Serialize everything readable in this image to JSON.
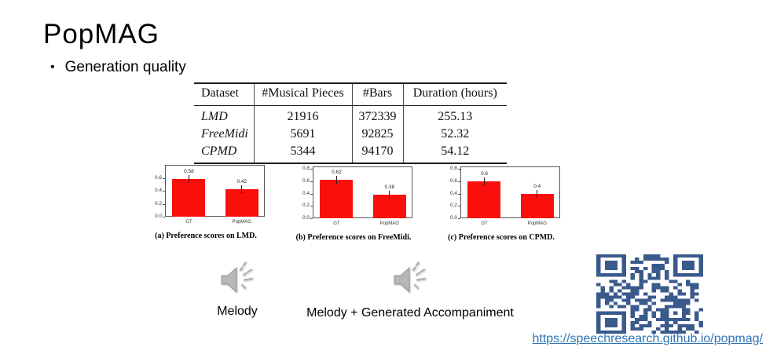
{
  "slide": {
    "title": "PopMAG",
    "bullet": "Generation quality"
  },
  "dataset_table": {
    "headers": [
      "Dataset",
      "#Musical Pieces",
      "#Bars",
      "Duration (hours)"
    ],
    "rows": [
      [
        "LMD",
        "21916",
        "372339",
        "255.13"
      ],
      [
        "FreeMidi",
        "5691",
        "92825",
        "52.32"
      ],
      [
        "CPMD",
        "5344",
        "94170",
        "54.12"
      ]
    ]
  },
  "chart_data": [
    {
      "type": "bar",
      "title": "(a) Preference scores on LMD.",
      "categories": [
        "GT",
        "PopMAG"
      ],
      "values": [
        0.58,
        0.42
      ],
      "value_labels": [
        "0.58",
        "0.42"
      ],
      "yticks": [
        "0.0",
        "0.2",
        "0.4",
        "0.6"
      ],
      "ylim": [
        0,
        0.8
      ],
      "bar_color": "#fa0f0c",
      "grid": false,
      "legend": "none"
    },
    {
      "type": "bar",
      "title": "(b) Preference scores on FreeMidi.",
      "categories": [
        "GT",
        "PopMAG"
      ],
      "values": [
        0.62,
        0.38
      ],
      "value_labels": [
        "0.62",
        "0.38"
      ],
      "yticks": [
        "0.0",
        "0.2",
        "0.4",
        "0.6",
        "0.8"
      ],
      "ylim": [
        0,
        0.84
      ],
      "bar_color": "#fa0f0c",
      "grid": false,
      "legend": "none"
    },
    {
      "type": "bar",
      "title": "(c) Preference scores on CPMD.",
      "categories": [
        "GT",
        "PopMAG"
      ],
      "values": [
        0.6,
        0.4
      ],
      "value_labels": [
        "0.6",
        "0.4"
      ],
      "yticks": [
        "0.0",
        "0.2",
        "0.4",
        "0.6",
        "0.8"
      ],
      "ylim": [
        0,
        0.84
      ],
      "bar_color": "#fa0f0c",
      "grid": false,
      "legend": "none"
    }
  ],
  "audio_players": [
    {
      "label": "Melody",
      "icon": "speaker-icon"
    },
    {
      "label": "Melody + Generated Accompaniment",
      "icon": "speaker-icon"
    }
  ],
  "qr": {
    "icon": "qr-code",
    "color": "#3a5a8c"
  },
  "link": {
    "text": "https://speechresearch.github.io/popmag/",
    "color": "#2e75b6"
  }
}
